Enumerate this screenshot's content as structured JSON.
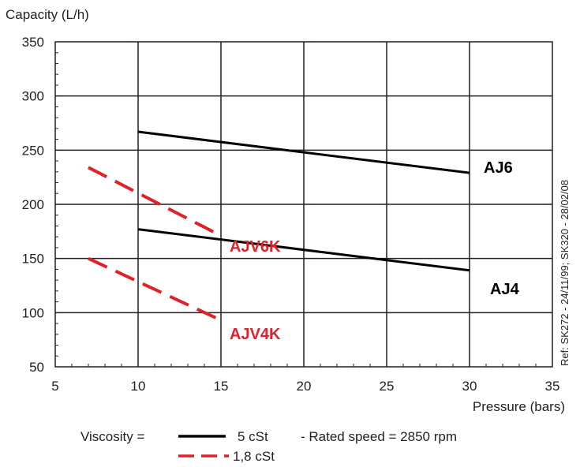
{
  "chart_data": {
    "type": "line",
    "xlabel": "Pressure  (bars)",
    "ylabel": "Capacity (L/h)",
    "xlim": [
      5,
      35
    ],
    "ylim": [
      50,
      350
    ],
    "x_ticks": [
      5,
      10,
      15,
      20,
      25,
      30,
      35
    ],
    "y_ticks": [
      50,
      100,
      150,
      200,
      250,
      300,
      350
    ],
    "grid": true,
    "series": [
      {
        "name": "AJ6",
        "viscosity": "5 cSt",
        "style": "solid",
        "color": "#000000",
        "x": [
          10,
          30
        ],
        "y": [
          267,
          229
        ]
      },
      {
        "name": "AJ4",
        "viscosity": "5 cSt",
        "style": "solid",
        "color": "#000000",
        "x": [
          10,
          30
        ],
        "y": [
          177,
          139
        ]
      },
      {
        "name": "AJV6K",
        "viscosity": "1,8 cSt",
        "style": "dashed",
        "color": "#e2202a",
        "x": [
          7,
          15
        ],
        "y": [
          234,
          171
        ]
      },
      {
        "name": "AJV4K",
        "viscosity": "1,8 cSt",
        "style": "dashed",
        "color": "#e2202a",
        "x": [
          7,
          15
        ],
        "y": [
          150,
          93
        ]
      }
    ],
    "legend": {
      "prefix": "Viscosity =",
      "entries": [
        {
          "style": "solid",
          "color": "#000000",
          "label": "5 cSt",
          "note": "- Rated speed = 2850 rpm"
        },
        {
          "style": "dashed",
          "color": "#e2202a",
          "label": "1,8 cSt",
          "note": ""
        }
      ]
    },
    "reference": "Ref: SK272 - 24/11/99; SK320 - 28/02/08"
  }
}
